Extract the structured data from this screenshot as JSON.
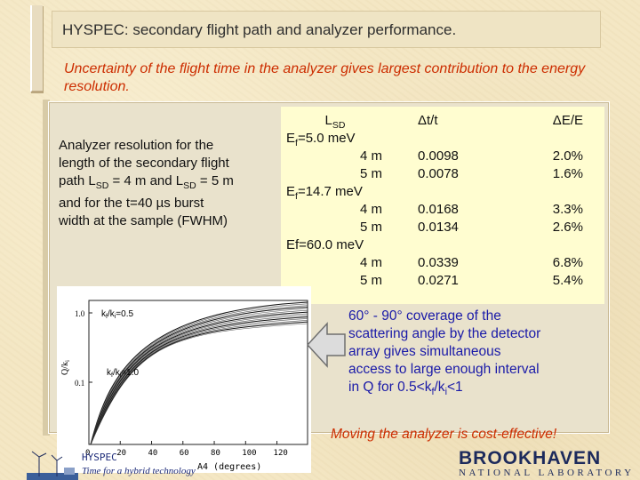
{
  "slide": {
    "title": "HYSPEC: secondary flight path and analyzer performance.",
    "subtitle": "Uncertainty of the flight time in the analyzer  gives largest contribution to the energy resolution.",
    "analyzer_text": {
      "l1": "Analyzer resolution for the",
      "l2": "length of the secondary flight",
      "l3a": "path L",
      "l3sub": "SD",
      "l3b": " = 4 m and L",
      "l3sub2": "SD",
      "l3c": " = 5 m",
      "l4": "and for the t=40 µs burst",
      "l5": "width at the sample (FWHM)"
    },
    "table": {
      "header_col1": "L",
      "header_col1_sub": "SD",
      "header_col2": "Δt/t",
      "header_col3": "ΔE/E",
      "groups": [
        {
          "label_pre": "E",
          "label_sub": "f",
          "label_post": "=5.0 meV",
          "rows": [
            {
              "l": "4 m",
              "dt": "0.0098",
              "de": "2.0%"
            },
            {
              "l": "5 m",
              "dt": "0.0078",
              "de": "1.6%"
            }
          ]
        },
        {
          "label_pre": "E",
          "label_sub": "f",
          "label_post": "=14.7 meV",
          "rows": [
            {
              "l": "4 m",
              "dt": "0.0168",
              "de": "3.3%"
            },
            {
              "l": "5 m",
              "dt": "0.0134",
              "de": "2.6%"
            }
          ]
        },
        {
          "label_pre": "Ef=60.0 meV",
          "label_sub": "",
          "label_post": "",
          "rows": [
            {
              "l": "4 m",
              "dt": "0.0339",
              "de": "6.8%"
            },
            {
              "l": "5 m",
              "dt": "0.0271",
              "de": "5.4%"
            }
          ]
        }
      ]
    },
    "coverage": {
      "l1": "60° - 90° coverage of the",
      "l2": "scattering angle by the detector",
      "l3": "array gives simultaneous",
      "l4": "access to large enough interval",
      "l5a": "in Q for 0.5<k",
      "l5sub1": "f",
      "l5b": "/k",
      "l5sub2": "i",
      "l5c": "<1"
    },
    "moving": "Moving the analyzer is cost-effective!",
    "footer": {
      "project": "HYSPEC",
      "tagline": "Time for a hybrid technology",
      "logo_main": "BROOKHAVEN",
      "logo_sub": "NATIONAL LABORATORY"
    },
    "plot": {
      "ylabel": "Q/k",
      "ylabel_sub": "i",
      "xlabel": "A4 (degrees)",
      "y_top": "1.0",
      "y_bot": "0.1",
      "x_ticks": [
        "0",
        "20",
        "40",
        "60",
        "80",
        "100",
        "120"
      ],
      "ann1": "k",
      "ann1_sub": "f",
      "ann1_b": "/k",
      "ann1_sub2": "i",
      "ann1_c": "=0.5",
      "ann2": "k",
      "ann2_sub": "f",
      "ann2_b": "/k",
      "ann2_sub2": "i",
      "ann2_c": "=1.0"
    }
  }
}
